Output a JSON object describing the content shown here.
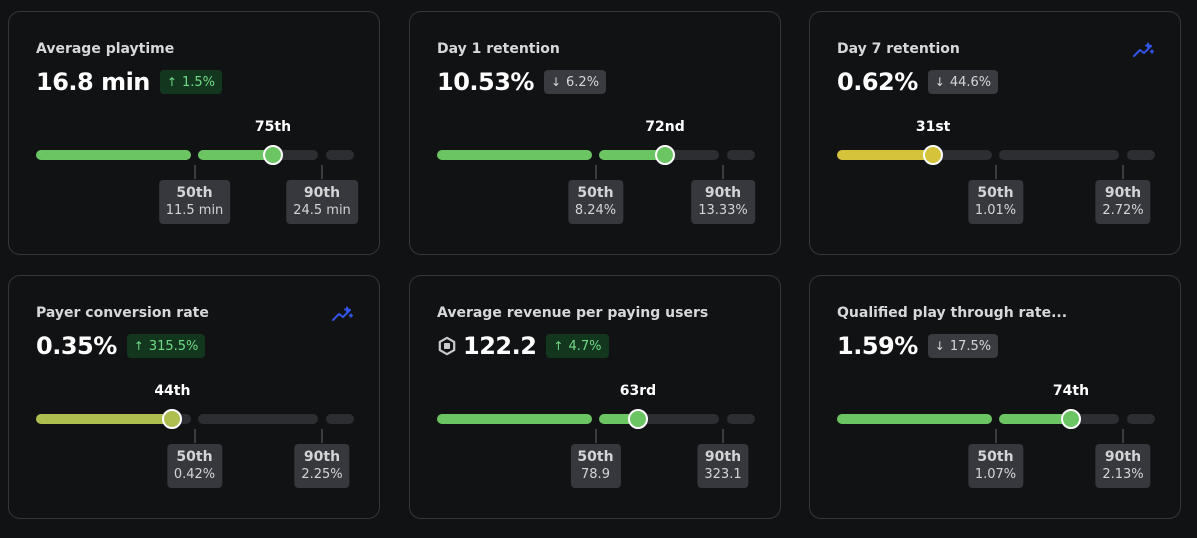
{
  "colors": {
    "green": "#6cc563",
    "olive": "#aebe4f",
    "yellow": "#d4c33b",
    "track": "#2c2e32",
    "sparkle": "#3354e8"
  },
  "cards": [
    {
      "title": "Average playtime",
      "value": "16.8 min",
      "delta": {
        "direction": "up",
        "arrow": "↑",
        "text": "1.5%"
      },
      "percentile": {
        "label": "75th",
        "value": 75,
        "color": "#6cc563"
      },
      "p50": {
        "label": "50th",
        "value": "11.5 min"
      },
      "p90": {
        "label": "90th",
        "value": "24.5 min"
      },
      "icons": []
    },
    {
      "title": "Day 1 retention",
      "value": "10.53%",
      "delta": {
        "direction": "down",
        "arrow": "↓",
        "text": "6.2%"
      },
      "percentile": {
        "label": "72nd",
        "value": 72,
        "color": "#6cc563"
      },
      "p50": {
        "label": "50th",
        "value": "8.24%"
      },
      "p90": {
        "label": "90th",
        "value": "13.33%"
      },
      "icons": []
    },
    {
      "title": "Day 7 retention",
      "value": "0.62%",
      "delta": {
        "direction": "down",
        "arrow": "↓",
        "text": "44.6%"
      },
      "percentile": {
        "label": "31st",
        "value": 31,
        "color": "#d4c33b"
      },
      "p50": {
        "label": "50th",
        "value": "1.01%"
      },
      "p90": {
        "label": "90th",
        "value": "2.72%"
      },
      "icons": [
        "trend-sparkle-icon"
      ]
    },
    {
      "title": "Payer conversion rate",
      "value": "0.35%",
      "delta": {
        "direction": "up",
        "arrow": "↑",
        "text": "315.5%"
      },
      "percentile": {
        "label": "44th",
        "value": 44,
        "color": "#aebe4f"
      },
      "p50": {
        "label": "50th",
        "value": "0.42%"
      },
      "p90": {
        "label": "90th",
        "value": "2.25%"
      },
      "icons": [
        "trend-sparkle-icon"
      ]
    },
    {
      "title": "Average revenue per paying users",
      "value": "122.2",
      "delta": {
        "direction": "up",
        "arrow": "↑",
        "text": "4.7%"
      },
      "percentile": {
        "label": "63rd",
        "value": 63,
        "color": "#6cc563"
      },
      "p50": {
        "label": "50th",
        "value": "78.9"
      },
      "p90": {
        "label": "90th",
        "value": "323.1"
      },
      "icons": [
        "robux-icon"
      ]
    },
    {
      "title": "Qualified play through rate...",
      "value": "1.59%",
      "delta": {
        "direction": "down",
        "arrow": "↓",
        "text": "17.5%"
      },
      "percentile": {
        "label": "74th",
        "value": 74,
        "color": "#6cc563"
      },
      "p50": {
        "label": "50th",
        "value": "1.07%"
      },
      "p90": {
        "label": "90th",
        "value": "2.13%"
      },
      "icons": []
    }
  ]
}
